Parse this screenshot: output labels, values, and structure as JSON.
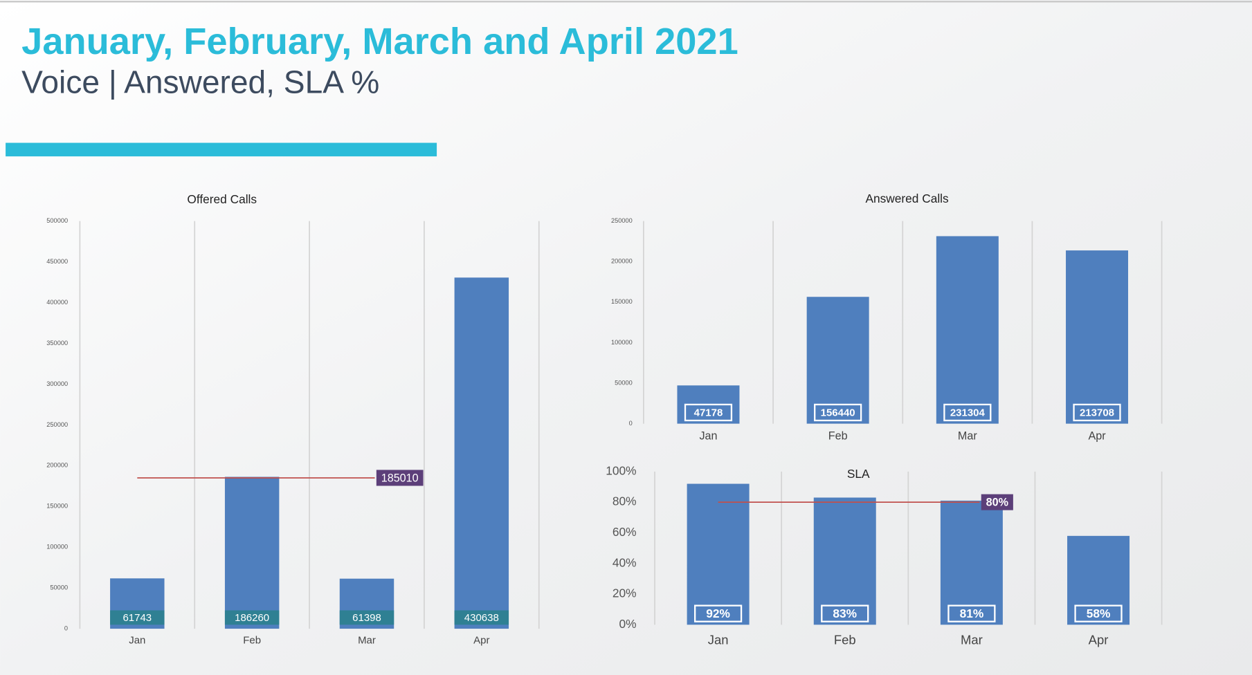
{
  "header": {
    "title": "January, February, March and April 2021",
    "subtitle": "Voice | Answered, SLA %"
  },
  "chart_data": [
    {
      "type": "bar",
      "title": "Offered Calls",
      "categories": [
        "Jan",
        "Feb",
        "Mar",
        "Apr"
      ],
      "values": [
        61743,
        186260,
        61398,
        430638
      ],
      "color": "#4f7fbe",
      "ylim": [
        0,
        500000
      ],
      "yticks": [
        0,
        50000,
        100000,
        150000,
        200000,
        250000,
        300000,
        350000,
        400000,
        450000,
        500000
      ],
      "reference_line": 185010,
      "reference_color": "#c0504d",
      "grid": true
    },
    {
      "type": "bar",
      "title": "Answered Calls",
      "categories": [
        "Jan",
        "Feb",
        "Mar",
        "Apr"
      ],
      "values": [
        47178,
        156440,
        231304,
        213708
      ],
      "color": "#4f7fbe",
      "ylim": [
        0,
        250000
      ],
      "yticks": [
        0,
        50000,
        100000,
        150000,
        200000,
        250000
      ],
      "grid": true
    },
    {
      "type": "bar",
      "title": "SLA",
      "categories": [
        "Jan",
        "Feb",
        "Mar",
        "Apr"
      ],
      "values": [
        92,
        83,
        81,
        58
      ],
      "value_labels": [
        "92%",
        "83%",
        "81%",
        "58%"
      ],
      "color": "#4f7fbe",
      "ylim": [
        0,
        100
      ],
      "yticks": [
        {
          "value": 0,
          "label": "0%"
        },
        {
          "value": 20,
          "label": "20%"
        },
        {
          "value": 40,
          "label": "40%"
        },
        {
          "value": 60,
          "label": "60%"
        },
        {
          "value": 80,
          "label": "80%"
        },
        {
          "value": 100,
          "label": "100%"
        }
      ],
      "reference_line": {
        "value": 80,
        "label": "80%"
      },
      "reference_color": "#c0504d",
      "grid": true
    }
  ]
}
